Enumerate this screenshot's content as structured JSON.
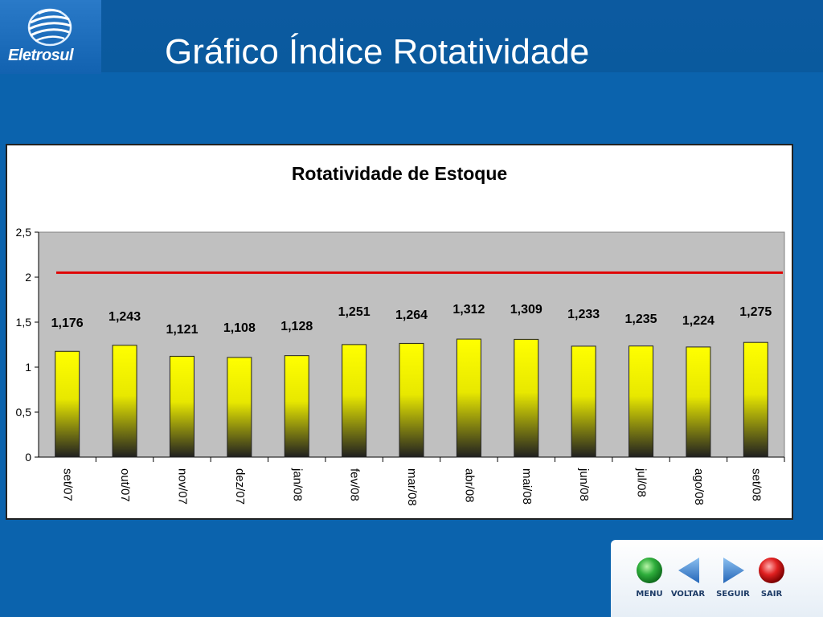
{
  "logo": {
    "text": "Eletrosul"
  },
  "slide": {
    "title": "Gráfico Índice Rotatividade"
  },
  "chart_data": {
    "type": "bar",
    "title": "Rotatividade de Estoque",
    "categories": [
      "set/07",
      "out/07",
      "nov/07",
      "dez/07",
      "jan/08",
      "fev/08",
      "mar/08",
      "abr/08",
      "mai/08",
      "jun/08",
      "jul/08",
      "ago/08",
      "set/08"
    ],
    "values": [
      1.176,
      1.243,
      1.121,
      1.108,
      1.128,
      1.251,
      1.264,
      1.312,
      1.309,
      1.233,
      1.235,
      1.224,
      1.275
    ],
    "value_labels": [
      "1,176",
      "1,243",
      "1,121",
      "1,108",
      "1,128",
      "1,251",
      "1,264",
      "1,312",
      "1,309",
      "1,233",
      "1,235",
      "1,224",
      "1,275"
    ],
    "yticks": [
      "0",
      "0,5",
      "1",
      "1,5",
      "2",
      "2,5"
    ],
    "ylim": [
      0,
      2.5
    ],
    "target_line": 2.05,
    "colors": {
      "bar_top": "#ffff00",
      "bar_bottom": "#202020",
      "plot_bg": "#c0c0c0",
      "target": "#e00000"
    },
    "grid": false,
    "legend": "none"
  },
  "nav": {
    "menu_label": "MENU",
    "back_label": "VOLTAR",
    "next_label": "SEGUIR",
    "exit_label": "SAIR"
  },
  "icons": [
    "globe-logo-icon",
    "green-orb-icon",
    "left-arrow-icon",
    "right-arrow-icon",
    "red-orb-icon"
  ]
}
